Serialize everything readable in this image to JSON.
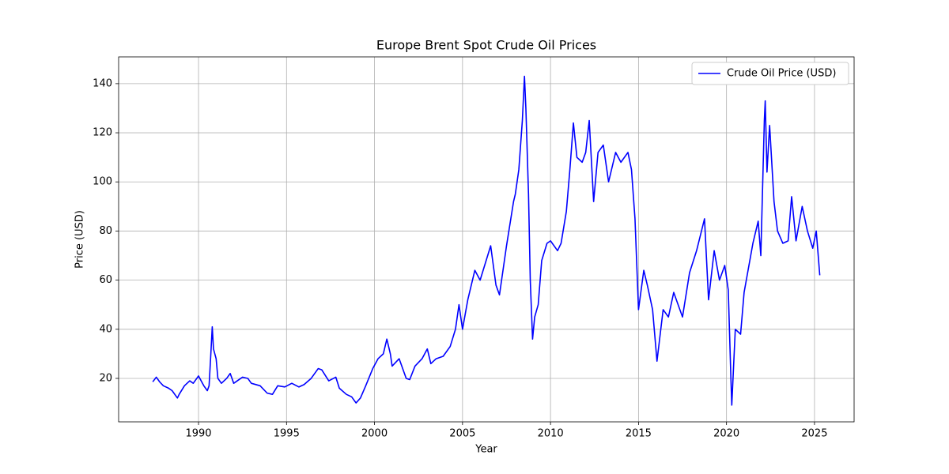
{
  "chart_data": {
    "type": "line",
    "title": "Europe Brent Spot Crude Oil Prices",
    "xlabel": "Year",
    "ylabel": "Price (USD)",
    "x": [
      1987.4,
      1987.6,
      1987.8,
      1988.0,
      1988.3,
      1988.5,
      1988.8,
      1988.9,
      1989.2,
      1989.5,
      1989.7,
      1990.0,
      1990.3,
      1990.5,
      1990.6,
      1990.7,
      1990.78,
      1990.85,
      1991.0,
      1991.1,
      1991.3,
      1991.6,
      1991.8,
      1992.0,
      1992.5,
      1992.8,
      1993.0,
      1993.5,
      1993.9,
      1994.2,
      1994.5,
      1994.9,
      1995.3,
      1995.7,
      1996.0,
      1996.4,
      1996.8,
      1997.0,
      1997.4,
      1997.8,
      1998.0,
      1998.4,
      1998.7,
      1998.95,
      1999.2,
      1999.5,
      1999.9,
      2000.2,
      2000.5,
      2000.7,
      2000.9,
      2001.0,
      2001.4,
      2001.8,
      2002.0,
      2002.3,
      2002.7,
      2003.0,
      2003.2,
      2003.5,
      2003.9,
      2004.3,
      2004.6,
      2004.8,
      2005.0,
      2005.3,
      2005.7,
      2006.0,
      2006.6,
      2006.9,
      2007.1,
      2007.5,
      2007.9,
      2008.0,
      2008.2,
      2008.4,
      2008.52,
      2008.6,
      2008.75,
      2008.85,
      2008.98,
      2009.1,
      2009.3,
      2009.5,
      2009.8,
      2010.0,
      2010.4,
      2010.6,
      2010.9,
      2011.1,
      2011.3,
      2011.5,
      2011.8,
      2012.0,
      2012.2,
      2012.45,
      2012.7,
      2013.0,
      2013.3,
      2013.7,
      2014.0,
      2014.4,
      2014.6,
      2014.8,
      2015.0,
      2015.3,
      2015.5,
      2015.8,
      2016.05,
      2016.4,
      2016.7,
      2017.0,
      2017.5,
      2017.9,
      2018.3,
      2018.75,
      2018.98,
      2019.3,
      2019.6,
      2019.9,
      2020.1,
      2020.25,
      2020.3,
      2020.5,
      2020.8,
      2021.0,
      2021.5,
      2021.8,
      2021.95,
      2022.15,
      2022.2,
      2022.3,
      2022.45,
      2022.7,
      2022.9,
      2023.2,
      2023.5,
      2023.7,
      2023.95,
      2024.3,
      2024.6,
      2024.9,
      2025.1,
      2025.3
    ],
    "series": [
      {
        "name": "Crude Oil Price (USD)",
        "color": "#0000ff",
        "values": [
          18.6,
          20.5,
          18.5,
          17,
          16,
          15,
          12,
          13.5,
          17,
          19,
          18,
          21,
          17,
          15,
          17,
          30,
          41,
          32,
          28,
          20,
          18,
          20,
          22,
          18,
          20.5,
          20,
          18,
          17,
          14,
          13.5,
          17,
          16.5,
          18,
          16.5,
          17.5,
          20,
          24,
          23.5,
          19,
          20.5,
          16,
          13.5,
          12.5,
          10,
          12,
          17,
          24,
          28,
          30,
          36,
          30,
          25,
          28,
          20,
          19.5,
          25,
          28,
          32,
          26,
          28,
          29,
          33,
          40,
          50,
          40,
          52,
          64,
          60,
          74,
          58,
          54,
          74,
          92,
          95,
          105,
          125,
          143,
          130,
          95,
          60,
          36,
          45,
          50,
          68,
          75,
          76,
          72,
          75,
          88,
          105,
          124,
          110,
          108,
          112,
          125,
          92,
          112,
          115,
          100,
          112,
          108,
          112,
          105,
          85,
          48,
          64,
          58,
          48,
          27,
          48,
          45,
          55,
          45,
          63,
          72,
          85,
          52,
          72,
          60,
          66,
          56,
          20,
          9.1,
          40,
          38,
          55,
          75,
          84,
          70,
          125,
          133,
          104,
          123,
          92,
          80,
          75,
          76,
          94,
          76,
          90,
          80,
          73,
          80,
          62
        ]
      }
    ],
    "xlim": [
      1985.46,
      2027.25
    ],
    "ylim": [
      2.3,
      150.9
    ],
    "xticks": [
      1990,
      1995,
      2000,
      2005,
      2010,
      2015,
      2020,
      2025
    ],
    "yticks": [
      20,
      40,
      60,
      80,
      100,
      120,
      140
    ],
    "grid": true,
    "legend": "upper right"
  }
}
